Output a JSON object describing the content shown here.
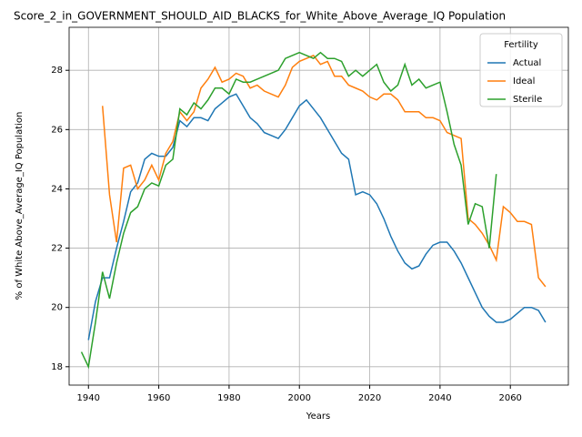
{
  "chart_data": {
    "type": "line",
    "title": "Score_2_in_GOVERNMENT_SHOULD_AID_BLACKS_for_White_Above_Average_IQ Population",
    "xlabel": "Years",
    "ylabel": "% of White Above_Average_IQ Population",
    "legend_title": "Fertility",
    "legend": "upper right",
    "grid": true,
    "x": [
      1938,
      1940,
      1942,
      1944,
      1946,
      1948,
      1950,
      1952,
      1954,
      1956,
      1958,
      1960,
      1962,
      1964,
      1966,
      1968,
      1970,
      1972,
      1974,
      1976,
      1978,
      1980,
      1982,
      1984,
      1986,
      1988,
      1990,
      1992,
      1994,
      1996,
      1998,
      2000,
      2002,
      2004,
      2006,
      2008,
      2010,
      2012,
      2014,
      2016,
      2018,
      2020,
      2022,
      2024,
      2026,
      2028,
      2030,
      2032,
      2034,
      2036,
      2038,
      2040,
      2042,
      2044,
      2046,
      2048,
      2050,
      2052,
      2054,
      2056,
      2058,
      2060,
      2062,
      2064,
      2066,
      2068,
      2070
    ],
    "series": [
      {
        "name": "Actual",
        "color": "#1f77b4",
        "values": [
          null,
          18.9,
          20.2,
          21.0,
          21.0,
          22.0,
          22.9,
          23.9,
          24.2,
          25.0,
          25.2,
          25.1,
          25.1,
          25.4,
          26.3,
          26.1,
          26.4,
          26.4,
          26.3,
          26.7,
          26.9,
          27.1,
          27.2,
          26.8,
          26.4,
          26.2,
          25.9,
          25.8,
          25.7,
          26.0,
          26.4,
          26.8,
          27.0,
          26.7,
          26.4,
          26.0,
          25.6,
          25.2,
          25.0,
          23.8,
          23.9,
          23.8,
          23.5,
          23.0,
          22.4,
          21.9,
          21.5,
          21.3,
          21.4,
          21.8,
          22.1,
          22.2,
          22.2,
          21.9,
          21.5,
          21.0,
          20.5,
          20.0,
          19.7,
          19.5,
          19.5,
          19.6,
          19.8,
          20.0,
          20.0,
          19.9,
          19.5
        ]
      },
      {
        "name": "Ideal",
        "color": "#ff7f0e",
        "values": [
          null,
          null,
          null,
          26.8,
          23.8,
          22.2,
          24.7,
          24.8,
          24.0,
          24.3,
          24.8,
          24.3,
          25.2,
          25.6,
          26.6,
          26.3,
          26.6,
          27.4,
          27.7,
          28.1,
          27.6,
          27.7,
          27.9,
          27.8,
          27.4,
          27.5,
          27.3,
          27.2,
          27.1,
          27.5,
          28.1,
          28.3,
          28.4,
          28.5,
          28.2,
          28.3,
          27.8,
          27.8,
          27.5,
          27.4,
          27.3,
          27.1,
          27.0,
          27.2,
          27.2,
          27.0,
          26.6,
          26.6,
          26.6,
          26.4,
          26.4,
          26.3,
          25.9,
          25.8,
          25.7,
          23.0,
          22.8,
          22.5,
          22.1,
          21.6,
          23.4,
          23.2,
          22.9,
          22.9,
          22.8,
          21.0,
          20.7
        ]
      },
      {
        "name": "Sterile",
        "color": "#2ca02c",
        "values": [
          18.5,
          18.0,
          19.5,
          21.2,
          20.3,
          21.5,
          22.5,
          23.2,
          23.4,
          24.0,
          24.2,
          24.1,
          24.8,
          25.0,
          26.7,
          26.5,
          26.9,
          26.7,
          27.0,
          27.4,
          27.4,
          27.2,
          27.7,
          27.6,
          27.6,
          27.7,
          27.8,
          27.9,
          28.0,
          28.4,
          28.5,
          28.6,
          28.5,
          28.4,
          28.6,
          28.4,
          28.4,
          28.3,
          27.8,
          28.0,
          27.8,
          28.0,
          28.2,
          27.6,
          27.3,
          27.5,
          28.2,
          27.5,
          27.7,
          27.4,
          27.5,
          27.6,
          26.6,
          25.5,
          24.8,
          22.8,
          23.5,
          23.4,
          22.0,
          24.5,
          null,
          null,
          null,
          null,
          null,
          null,
          null
        ]
      }
    ],
    "xlim": [
      1934.5,
      2076.5
    ],
    "ylim": [
      17.38,
      29.45
    ],
    "xticks": [
      1940,
      1960,
      1980,
      2000,
      2020,
      2040,
      2060
    ],
    "yticks": [
      18,
      20,
      22,
      24,
      26,
      28
    ]
  }
}
